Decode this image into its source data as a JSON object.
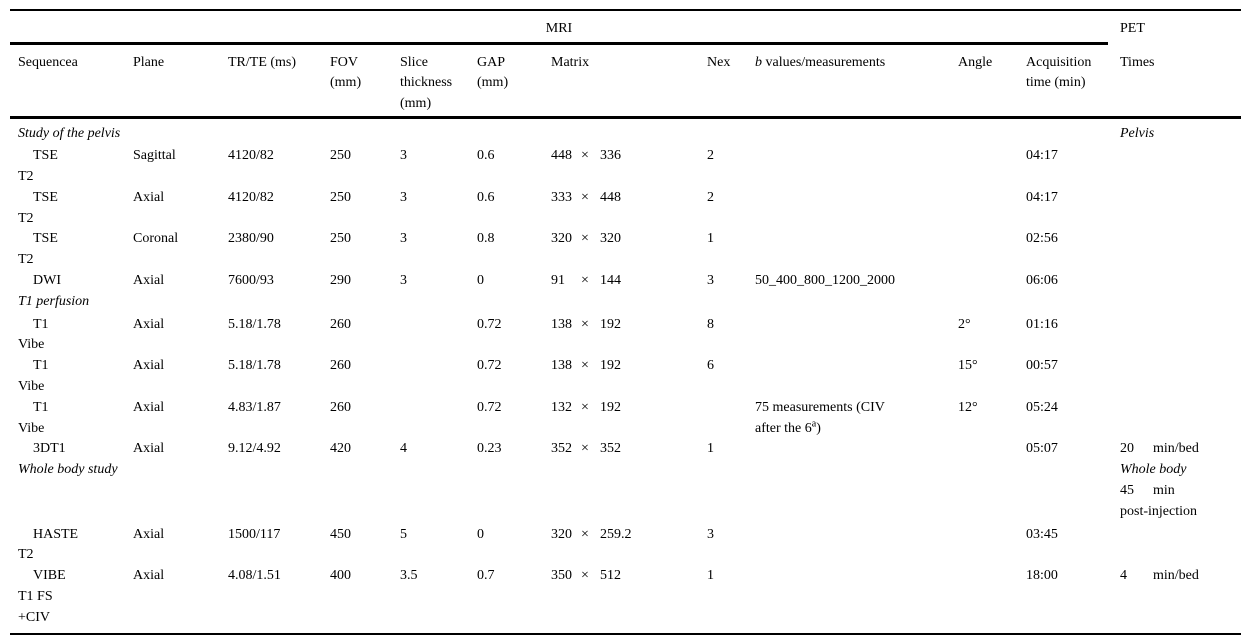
{
  "meta": {
    "group_mri": "MRI",
    "group_pet": "PET"
  },
  "symbols": {
    "times": "×"
  },
  "columns": {
    "sequence": "Sequencea",
    "plane": "Plane",
    "trte": "TR/TE (ms)",
    "fov": "FOV\n(mm)",
    "slice": "Slice\nthickness\n(mm)",
    "gap": "GAP\n(mm)",
    "matrix": "Matrix",
    "nex": "Nex",
    "bvalues": [
      {
        "t": "b",
        "i": true
      },
      {
        "t": " values/measurements"
      }
    ],
    "angle": "Angle",
    "acq": "Acquisition\ntime (min)",
    "times": "Times"
  },
  "rows": [
    {
      "type": "section",
      "title": "Study of the pelvis",
      "pet": [
        {
          "t": "Pelvis",
          "i": true
        }
      ]
    },
    {
      "seq": [
        "TSE",
        "T2"
      ],
      "plane": "Sagittal",
      "trte": "4120/82",
      "fov": "250",
      "slice": "3",
      "gap": "0.6",
      "m1": "448",
      "m2": "336",
      "nex": "2",
      "acq": "04:17"
    },
    {
      "seq": [
        "TSE",
        "T2"
      ],
      "plane": "Axial",
      "trte": "4120/82",
      "fov": "250",
      "slice": "3",
      "gap": "0.6",
      "m1": "333",
      "m2": "448",
      "nex": "2",
      "acq": "04:17"
    },
    {
      "seq": [
        "TSE",
        "T2"
      ],
      "plane": "Coronal",
      "trte": "2380/90",
      "fov": "250",
      "slice": "3",
      "gap": "0.8",
      "m1": "320",
      "m2": "320",
      "nex": "1",
      "acq": "02:56"
    },
    {
      "seq": [
        "DWI"
      ],
      "plane": "Axial",
      "trte": "7600/93",
      "fov": "290",
      "slice": "3",
      "gap": "0",
      "m1": "91",
      "m2": "144",
      "nex": "3",
      "bval": [
        "50_400_800_1200_2000"
      ],
      "acq": "06:06"
    },
    {
      "type": "section",
      "title": "T1 perfusion"
    },
    {
      "seq": [
        "T1",
        "Vibe"
      ],
      "plane": "Axial",
      "trte": "5.18/1.78",
      "fov": "260",
      "gap": "0.72",
      "m1": "138",
      "m2": "192",
      "nex": "8",
      "angle": "2°",
      "acq": "01:16"
    },
    {
      "seq": [
        "T1",
        "Vibe"
      ],
      "plane": "Axial",
      "trte": "5.18/1.78",
      "fov": "260",
      "gap": "0.72",
      "m1": "138",
      "m2": "192",
      "nex": "6",
      "angle": "15°",
      "acq": "00:57"
    },
    {
      "seq": [
        "T1",
        "Vibe"
      ],
      "plane": "Axial",
      "trte": "4.83/1.87",
      "fov": "260",
      "gap": "0.72",
      "m1": "132",
      "m2": "192",
      "bval": [
        "75 measurements (CIV",
        [
          {
            "t": "after the 6"
          },
          {
            "t": "a",
            "sup": true
          },
          {
            "t": ")"
          }
        ]
      ],
      "angle": "12°",
      "acq": "05:24"
    },
    {
      "seq": [
        "3DT1"
      ],
      "plane": "Axial",
      "trte": "9.12/4.92",
      "fov": "420",
      "slice": "4",
      "gap": "0.23",
      "m1": "352",
      "m2": "352",
      "nex": "1",
      "acq": "05:07",
      "pet": [
        {
          "n": "20",
          "u": "min/bed"
        }
      ]
    },
    {
      "type": "section",
      "title": "Whole body study",
      "pet": [
        {
          "t": "Whole body",
          "i": true
        },
        {
          "n": "45",
          "u": "min"
        },
        {
          "t": "post-injection"
        }
      ]
    },
    {
      "seq": [
        "HASTE",
        "T2"
      ],
      "plane": "Axial",
      "trte": "1500/117",
      "fov": "450",
      "slice": "5",
      "gap": "0",
      "m1": "320",
      "m2": "259.2",
      "nex": "3",
      "acq": "03:45"
    },
    {
      "seq": [
        "VIBE",
        "T1 FS",
        "+CIV"
      ],
      "plane": "Axial",
      "trte": "4.08/1.51",
      "fov": "400",
      "slice": "3.5",
      "gap": "0.7",
      "m1": "350",
      "m2": "512",
      "nex": "1",
      "acq": "18:00",
      "pet": [
        {
          "n": "4",
          "u": "min/bed"
        }
      ]
    }
  ]
}
